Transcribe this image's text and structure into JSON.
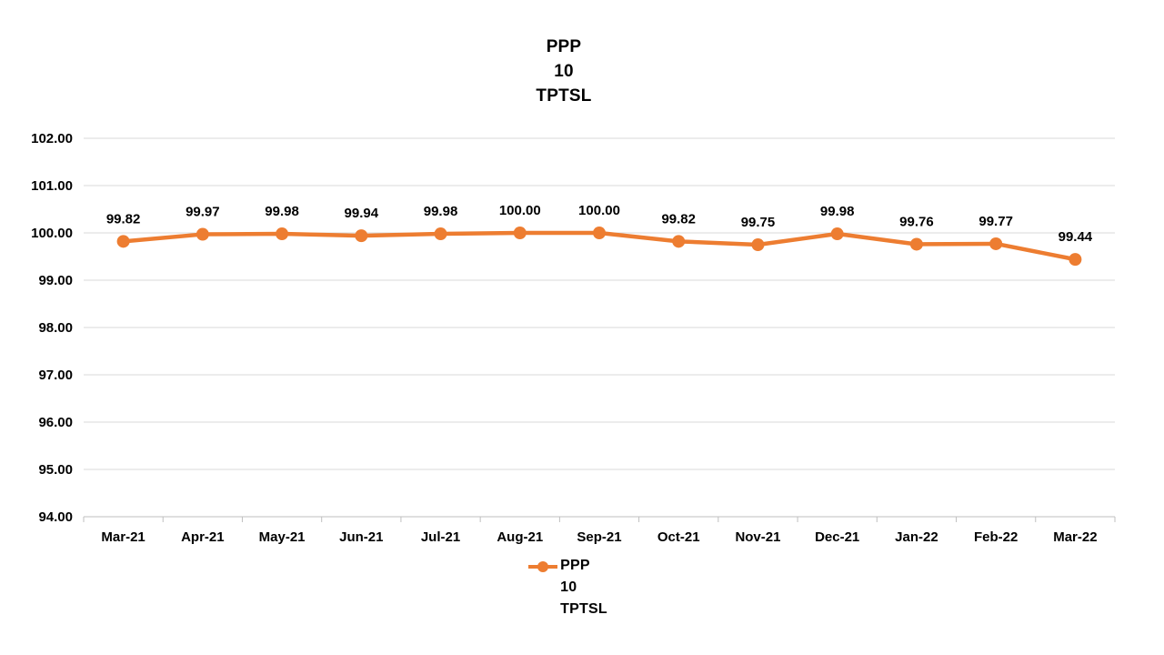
{
  "chart_data": {
    "type": "line",
    "title_lines": [
      "PPP",
      "10",
      "TPTSL"
    ],
    "categories": [
      "Mar-21",
      "Apr-21",
      "May-21",
      "Jun-21",
      "Jul-21",
      "Aug-21",
      "Sep-21",
      "Oct-21",
      "Nov-21",
      "Dec-21",
      "Jan-22",
      "Feb-22",
      "Mar-22"
    ],
    "series": [
      {
        "name_lines": [
          "PPP",
          "10",
          "TPTSL"
        ],
        "values": [
          99.82,
          99.97,
          99.98,
          99.94,
          99.98,
          100.0,
          100.0,
          99.82,
          99.75,
          99.98,
          99.76,
          99.77,
          99.44
        ],
        "color": "#ED7D31"
      }
    ],
    "data_labels": [
      "99.82",
      "99.97",
      "99.98",
      "99.94",
      "99.98",
      "100.00",
      "100.00",
      "99.82",
      "99.75",
      "99.98",
      "99.76",
      "99.77",
      "99.44"
    ],
    "ylim": [
      94,
      102
    ],
    "ytick_step": 1,
    "ytick_labels": [
      "94.00",
      "95.00",
      "96.00",
      "97.00",
      "98.00",
      "99.00",
      "100.00",
      "101.00",
      "102.00"
    ],
    "grid": "horizontal",
    "legend_position": "bottom",
    "colors": {
      "series": "#ED7D31",
      "gridline": "#D9D9D9",
      "axis": "#BFBFBF",
      "text": "#000000",
      "background": "#FFFFFF"
    }
  }
}
